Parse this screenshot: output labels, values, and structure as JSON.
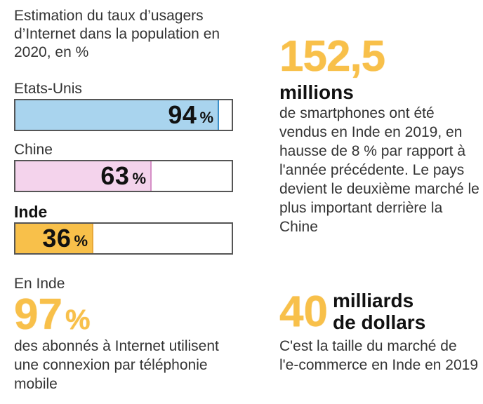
{
  "intro": "Estimation du taux d’usagers d’Internet dans la population en 2020, en %",
  "chart_data": {
    "type": "bar",
    "title": "Estimation du taux d’usagers d’Internet dans la population en 2020, en %",
    "orientation": "horizontal",
    "categories": [
      "Etats-Unis",
      "Chine",
      "Inde"
    ],
    "values": [
      94,
      63,
      36
    ],
    "unit": "%",
    "xlim": [
      0,
      100
    ],
    "colors": [
      "#a9d4ee",
      "#f4d3ec",
      "#f8c04a"
    ],
    "border_colors": [
      "#3a8fc8",
      "#d58ec6",
      "#e8a93a"
    ]
  },
  "stat_smartphones": {
    "number": "152,5",
    "unit": "millions",
    "text": "de smartphones ont été vendus en Inde en 2019, en hausse de 8 % par rapport à l'année précédente. Le pays devient le deuxième marché le plus important derrière la Chine"
  },
  "stat_mobile": {
    "pre": "En Inde",
    "number": "97",
    "pct": "%",
    "text": "des abonnés à Internet utilisent une connexion par téléphonie mobile"
  },
  "stat_ecommerce": {
    "number": "40",
    "unit_line1": "milliards",
    "unit_line2": "de dollars",
    "text": "C'est la taille du marché de l'e-commerce en Inde en 2019"
  },
  "accent_color": "#f8c04a"
}
